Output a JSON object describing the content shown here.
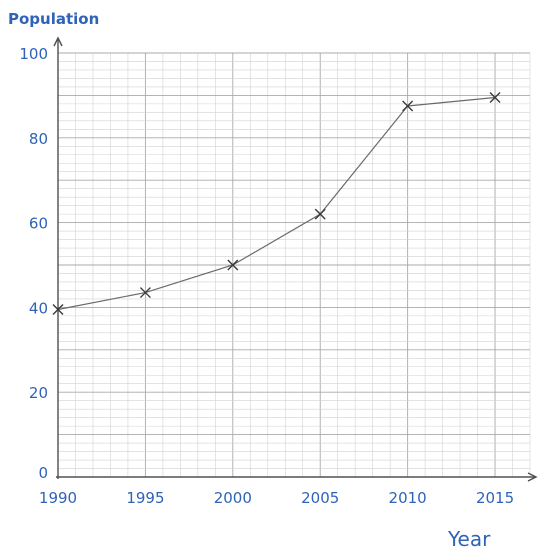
{
  "chart_data": {
    "type": "line",
    "title": "",
    "xlabel": "Year",
    "ylabel": "Population",
    "x": [
      1990,
      1995,
      2000,
      2005,
      2010,
      2015
    ],
    "series": [
      {
        "values": [
          39.5,
          43.5,
          50,
          62,
          87.5,
          89.5
        ]
      }
    ],
    "xticks": [
      "1990",
      "1995",
      "2000",
      "2005",
      "2010",
      "2015"
    ],
    "yticks": [
      "0",
      "20",
      "40",
      "60",
      "80",
      "100"
    ],
    "xlim": [
      1990,
      2017
    ],
    "ylim": [
      0,
      100
    ],
    "grid": true,
    "legend": "none",
    "colors": {
      "labels": "#2f63b8",
      "line": "#6a6a6a",
      "grid": "#a9a9a9"
    }
  }
}
